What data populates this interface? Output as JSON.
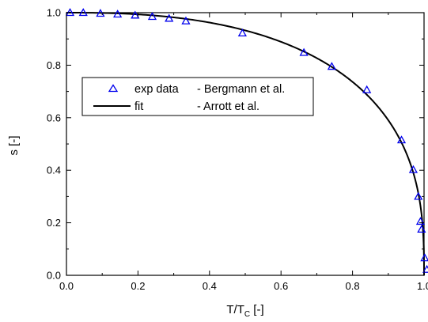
{
  "chart_data": {
    "type": "scatter",
    "xlabel": "T/T",
    "xlabel_sub": "C",
    "xlabel_unit": " [-]",
    "ylabel": "s [-]",
    "xlim": [
      0.0,
      1.0
    ],
    "ylim": [
      0.0,
      1.0
    ],
    "xticks": [
      "0.0",
      "0.2",
      "0.4",
      "0.6",
      "0.8",
      "1.0"
    ],
    "yticks": [
      "0.0",
      "0.2",
      "0.4",
      "0.6",
      "0.8",
      "1.0"
    ],
    "grid": false,
    "legend_position": "center-left",
    "series": [
      {
        "name": "exp data",
        "source": "- Bergmann et al.",
        "kind": "markers",
        "marker": "triangle-open",
        "color": "#0000ee",
        "x": [
          0.01,
          0.047,
          0.095,
          0.143,
          0.192,
          0.24,
          0.287,
          0.334,
          0.492,
          0.664,
          0.742,
          0.84,
          0.937,
          0.97,
          0.984,
          0.99,
          0.993,
          1.002,
          1.008
        ],
        "y": [
          1.0,
          1.0,
          0.997,
          0.994,
          0.99,
          0.985,
          0.978,
          0.968,
          0.922,
          0.848,
          0.795,
          0.706,
          0.515,
          0.402,
          0.3,
          0.205,
          0.175,
          0.066,
          0.022
        ]
      },
      {
        "name": "fit",
        "source": "- Arrott et al.",
        "kind": "line",
        "color": "#000000"
      }
    ]
  }
}
